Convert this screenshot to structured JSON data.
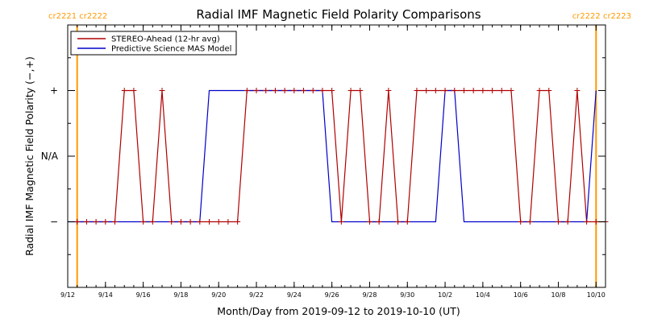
{
  "chart_data": {
    "type": "line",
    "title": "Radial IMF Magnetic Field Polarity Comparisons",
    "xlabel": "Month/Day from 2019-09-12 to 2019-10-10 (UT)",
    "ylabel": "Radial IMF Magnetic Field Polarity (−,+)",
    "x_range": [
      "2019-09-12T00:00",
      "2019-10-10T12:00"
    ],
    "x_tick_labels": [
      "9/12",
      "9/14",
      "9/16",
      "9/18",
      "9/20",
      "9/22",
      "9/24",
      "9/26",
      "9/28",
      "9/30",
      "10/2",
      "10/4",
      "10/6",
      "10/8",
      "10/10"
    ],
    "x_tick_dates": [
      "2019-09-12",
      "2019-09-14",
      "2019-09-16",
      "2019-09-18",
      "2019-09-20",
      "2019-09-22",
      "2019-09-24",
      "2019-09-26",
      "2019-09-28",
      "2019-09-30",
      "2019-10-02",
      "2019-10-04",
      "2019-10-06",
      "2019-10-08",
      "2019-10-10"
    ],
    "y_categories": [
      "−",
      "N/A",
      "+"
    ],
    "y_values_meaning": {
      "-1": "−",
      "0": "N/A",
      "1": "+"
    },
    "ylim": [
      -2,
      2
    ],
    "grid": false,
    "legend_position": "top-left",
    "carrington_markers": [
      {
        "date": "2019-09-12T12:00",
        "left_label": "cr2221",
        "right_label": "cr2222",
        "label_side": "left"
      },
      {
        "date": "2019-10-10T00:00",
        "left_label": "cr2222",
        "right_label": "cr2223",
        "label_side": "right"
      }
    ],
    "series": [
      {
        "name": "STEREO-Ahead (12-hr avg)",
        "color": "#b00000",
        "markers": "plus",
        "points": [
          [
            "2019-09-12T12:00",
            -1
          ],
          [
            "2019-09-13T00:00",
            -1
          ],
          [
            "2019-09-13T12:00",
            -1
          ],
          [
            "2019-09-14T00:00",
            -1
          ],
          [
            "2019-09-14T12:00",
            -1
          ],
          [
            "2019-09-15T00:00",
            1
          ],
          [
            "2019-09-15T12:00",
            1
          ],
          [
            "2019-09-16T00:00",
            -1
          ],
          [
            "2019-09-16T12:00",
            -1
          ],
          [
            "2019-09-17T00:00",
            1
          ],
          [
            "2019-09-17T12:00",
            -1
          ],
          [
            "2019-09-18T00:00",
            -1
          ],
          [
            "2019-09-18T12:00",
            -1
          ],
          [
            "2019-09-19T00:00",
            -1
          ],
          [
            "2019-09-19T12:00",
            -1
          ],
          [
            "2019-09-20T00:00",
            -1
          ],
          [
            "2019-09-20T12:00",
            -1
          ],
          [
            "2019-09-21T00:00",
            -1
          ],
          [
            "2019-09-21T12:00",
            1
          ],
          [
            "2019-09-22T00:00",
            1
          ],
          [
            "2019-09-22T12:00",
            1
          ],
          [
            "2019-09-23T00:00",
            1
          ],
          [
            "2019-09-23T12:00",
            1
          ],
          [
            "2019-09-24T00:00",
            1
          ],
          [
            "2019-09-24T12:00",
            1
          ],
          [
            "2019-09-25T00:00",
            1
          ],
          [
            "2019-09-25T12:00",
            1
          ],
          [
            "2019-09-26T00:00",
            1
          ],
          [
            "2019-09-26T12:00",
            -1
          ],
          [
            "2019-09-27T00:00",
            1
          ],
          [
            "2019-09-27T12:00",
            1
          ],
          [
            "2019-09-28T00:00",
            -1
          ],
          [
            "2019-09-28T12:00",
            -1
          ],
          [
            "2019-09-29T00:00",
            1
          ],
          [
            "2019-09-29T12:00",
            -1
          ],
          [
            "2019-09-30T00:00",
            -1
          ],
          [
            "2019-09-30T12:00",
            1
          ],
          [
            "2019-10-01T00:00",
            1
          ],
          [
            "2019-10-01T12:00",
            1
          ],
          [
            "2019-10-02T00:00",
            1
          ],
          [
            "2019-10-02T12:00",
            1
          ],
          [
            "2019-10-03T00:00",
            1
          ],
          [
            "2019-10-03T12:00",
            1
          ],
          [
            "2019-10-04T00:00",
            1
          ],
          [
            "2019-10-04T12:00",
            1
          ],
          [
            "2019-10-05T00:00",
            1
          ],
          [
            "2019-10-05T12:00",
            1
          ],
          [
            "2019-10-06T00:00",
            -1
          ],
          [
            "2019-10-06T12:00",
            -1
          ],
          [
            "2019-10-07T00:00",
            1
          ],
          [
            "2019-10-07T12:00",
            1
          ],
          [
            "2019-10-08T00:00",
            -1
          ],
          [
            "2019-10-08T12:00",
            -1
          ],
          [
            "2019-10-09T00:00",
            1
          ],
          [
            "2019-10-09T12:00",
            -1
          ],
          [
            "2019-10-10T00:00",
            -1
          ],
          [
            "2019-10-10T12:00",
            -1
          ]
        ]
      },
      {
        "name": "Predictive Science MAS Model",
        "color": "#0000cc",
        "markers": "none",
        "points": [
          [
            "2019-09-12T00:00",
            -1
          ],
          [
            "2019-09-19T00:00",
            -1
          ],
          [
            "2019-09-19T12:00",
            1
          ],
          [
            "2019-09-25T12:00",
            1
          ],
          [
            "2019-09-26T00:00",
            -1
          ],
          [
            "2019-10-01T12:00",
            -1
          ],
          [
            "2019-10-02T00:00",
            1
          ],
          [
            "2019-10-02T12:00",
            1
          ],
          [
            "2019-10-03T00:00",
            -1
          ],
          [
            "2019-10-09T12:00",
            -1
          ],
          [
            "2019-10-10T00:00",
            1
          ]
        ]
      }
    ]
  },
  "colors": {
    "background": "#ffffff",
    "axes": "#000000",
    "carrington_marker": "#ff9900",
    "stereo_series": "#b00000",
    "model_series": "#0000cc"
  }
}
